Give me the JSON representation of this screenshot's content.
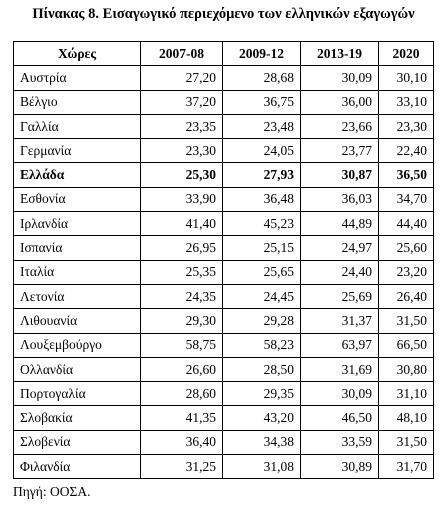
{
  "title": "Πίνακας 8. Εισαγωγικό περιεχόμενο των ελληνικών εξαγωγών",
  "table": {
    "header": [
      "Χώρες",
      "2007-08",
      "2009-12",
      "2013-19",
      "2020"
    ],
    "rows": [
      [
        "Αυστρία",
        "27,20",
        "28,68",
        "30,09",
        "30,10"
      ],
      [
        "Βέλγιο",
        "37,20",
        "36,75",
        "36,00",
        "33,10"
      ],
      [
        "Γαλλία",
        "23,35",
        "23,48",
        "23,66",
        "23,30"
      ],
      [
        "Γερμανία",
        "23,30",
        "24,05",
        "23,77",
        "22,40"
      ],
      [
        "Ελλάδα",
        "25,30",
        "27,93",
        "30,87",
        "36,50"
      ],
      [
        "Εσθονία",
        "33,90",
        "36,48",
        "36,03",
        "34,70"
      ],
      [
        "Ιρλανδία",
        "41,40",
        "45,23",
        "44,89",
        "44,40"
      ],
      [
        "Ισπανία",
        "26,95",
        "25,15",
        "24,97",
        "25,60"
      ],
      [
        "Ιταλία",
        "25,35",
        "25,65",
        "24,40",
        "23,20"
      ],
      [
        "Λετονία",
        "24,35",
        "24,45",
        "25,69",
        "26,40"
      ],
      [
        "Λιθουανία",
        "29,30",
        "29,28",
        "31,37",
        "31,50"
      ],
      [
        "Λουξεμβούργο",
        "58,75",
        "58,23",
        "63,97",
        "66,50"
      ],
      [
        "Ολλανδία",
        "26,60",
        "28,50",
        "31,69",
        "30,80"
      ],
      [
        "Πορτογαλία",
        "28,60",
        "29,35",
        "30,09",
        "31,10"
      ],
      [
        "Σλοβακία",
        "41,35",
        "43,20",
        "46,50",
        "48,10"
      ],
      [
        "Σλοβενία",
        "36,40",
        "34,38",
        "33,59",
        "31,50"
      ],
      [
        "Φιλανδία",
        "31,25",
        "31,08",
        "30,89",
        "31,70"
      ]
    ],
    "bold_row": 4
  },
  "source": "Πηγή: ΟΟΣΑ."
}
